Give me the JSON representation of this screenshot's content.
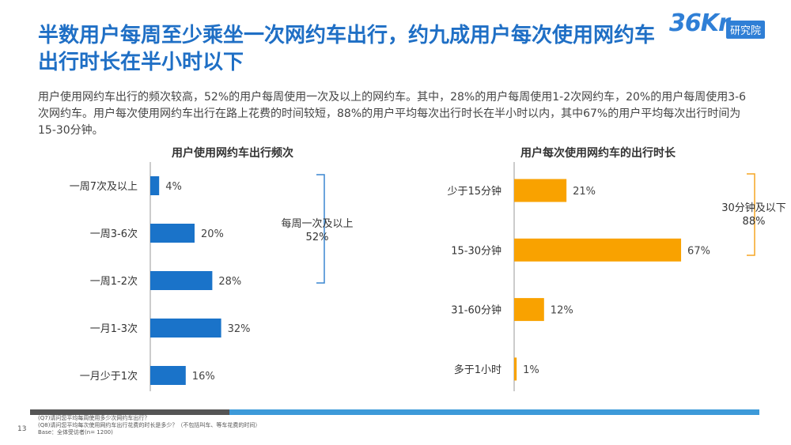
{
  "slide": {
    "title": "半数用户每周至少乘坐一次网约车出行，约九成用户每次使用网约车出行时长在半小时以下",
    "subtitle": "用户使用网约车出行的频次较高，52%的用户每周使用一次及以上的网约车。其中，28%的用户每周使用1-2次网约车，20%的用户每周使用3-6次网约车。用户每次使用网约车出行在路上花费的时间较短，88%的用户平均每次出行时长在半小时以内，其中67%的用户平均每次出行时间为15-30分钟。",
    "logo_main": "36",
    "logo_sup": "Kr",
    "logo_badge": "研究院",
    "page_number": "13",
    "footnotes": [
      "(Q7)请问您平均每周使用多少次网约车出行？",
      "(Q8)请问您平均每次使用网约车出行花费的时长是多少？（不包括叫车、等车花费的时间）",
      "Base：全体受访者(n= 1200)"
    ],
    "colors": {
      "title_blue": "#1f6fc5",
      "bar_blue": "#1a73c9",
      "bar_orange": "#f9a200",
      "bracket_blue": "#3a86d0",
      "bracket_orange": "#f5a623"
    }
  },
  "chart_data": [
    {
      "type": "bar",
      "orientation": "horizontal",
      "title": "用户使用网约车出行频次",
      "categories": [
        "一周7次及以上",
        "一周3-6次",
        "一周1-2次",
        "一月1-3次",
        "一月少于1次"
      ],
      "values": [
        4,
        20,
        28,
        32,
        16
      ],
      "labels": [
        "4%",
        "20%",
        "28%",
        "32%",
        "16%"
      ],
      "unit": "%",
      "color": "#1a73c9",
      "annotation": {
        "text": [
          "每周一次及以上",
          "52%"
        ],
        "covers": [
          "一周7次及以上",
          "一周3-6次",
          "一周1-2次"
        ]
      }
    },
    {
      "type": "bar",
      "orientation": "horizontal",
      "title": "用户每次使用网约车的出行时长",
      "categories": [
        "少于15分钟",
        "15-30分钟",
        "31-60分钟",
        "多于1小时"
      ],
      "values": [
        21,
        67,
        12,
        1
      ],
      "labels": [
        "21%",
        "67%",
        "12%",
        "1%"
      ],
      "unit": "%",
      "color": "#f9a200",
      "annotation": {
        "text": [
          "30分钟及以下",
          "88%"
        ],
        "covers": [
          "少于15分钟",
          "15-30分钟"
        ]
      }
    }
  ]
}
